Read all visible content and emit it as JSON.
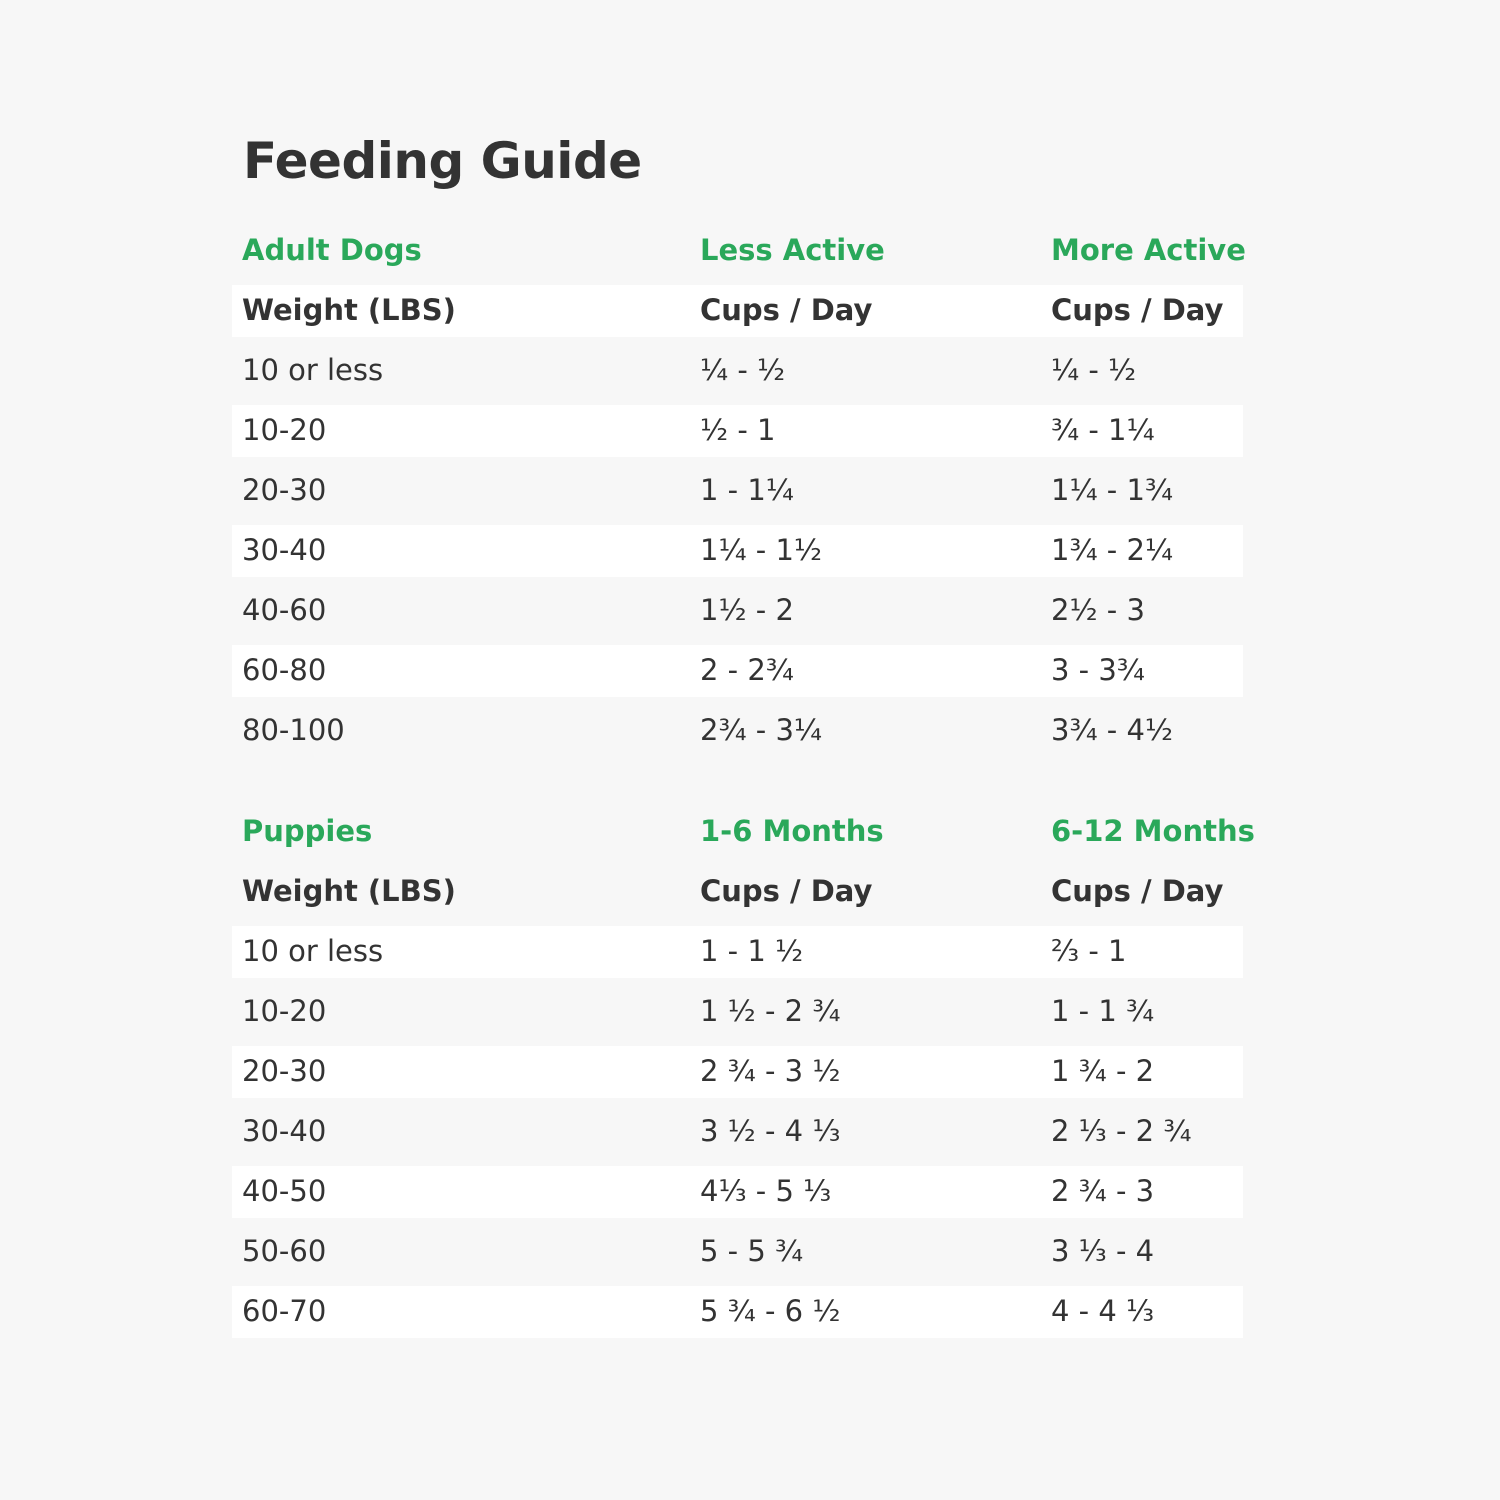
{
  "title": "Feeding Guide",
  "sections": [
    {
      "header": [
        "Adult Dogs",
        "Less Active",
        "More Active"
      ],
      "subheader": [
        "Weight (LBS)",
        "Cups / Day",
        "Cups / Day"
      ],
      "rows": [
        [
          "10 or less",
          "¼ - ½",
          "¼ - ½"
        ],
        [
          "10-20",
          "½ - 1",
          "¾ - 1¼"
        ],
        [
          "20-30",
          "1 - 1¼",
          "1¼ - 1¾"
        ],
        [
          "30-40",
          "1¼ - 1½",
          "1¾ - 2¼"
        ],
        [
          "40-60",
          "1½ - 2",
          "2½ - 3"
        ],
        [
          "60-80",
          "2 - 2¾",
          "3 - 3¾"
        ],
        [
          "80-100",
          "2¾ - 3¼",
          "3¾ - 4½"
        ]
      ]
    },
    {
      "header": [
        "Puppies",
        "1-6 Months",
        "6-12 Months"
      ],
      "subheader": [
        "Weight (LBS)",
        "Cups / Day",
        "Cups / Day"
      ],
      "rows": [
        [
          "10 or less",
          "1 - 1 ½",
          "⅔ - 1"
        ],
        [
          "10-20",
          "1 ½ - 2 ¾",
          "1 - 1 ¾"
        ],
        [
          "20-30",
          "2 ¾ - 3 ½",
          "1 ¾ - 2"
        ],
        [
          "30-40",
          "3 ½ - 4 ⅓",
          "2 ⅓ - 2 ¾"
        ],
        [
          "40-50",
          "4⅓ - 5 ⅓",
          "2 ¾ - 3"
        ],
        [
          "50-60",
          "5 - 5 ¾",
          "3 ⅓ - 4"
        ],
        [
          "60-70",
          "5 ¾ - 6 ½",
          "4 - 4 ⅓"
        ]
      ]
    }
  ]
}
